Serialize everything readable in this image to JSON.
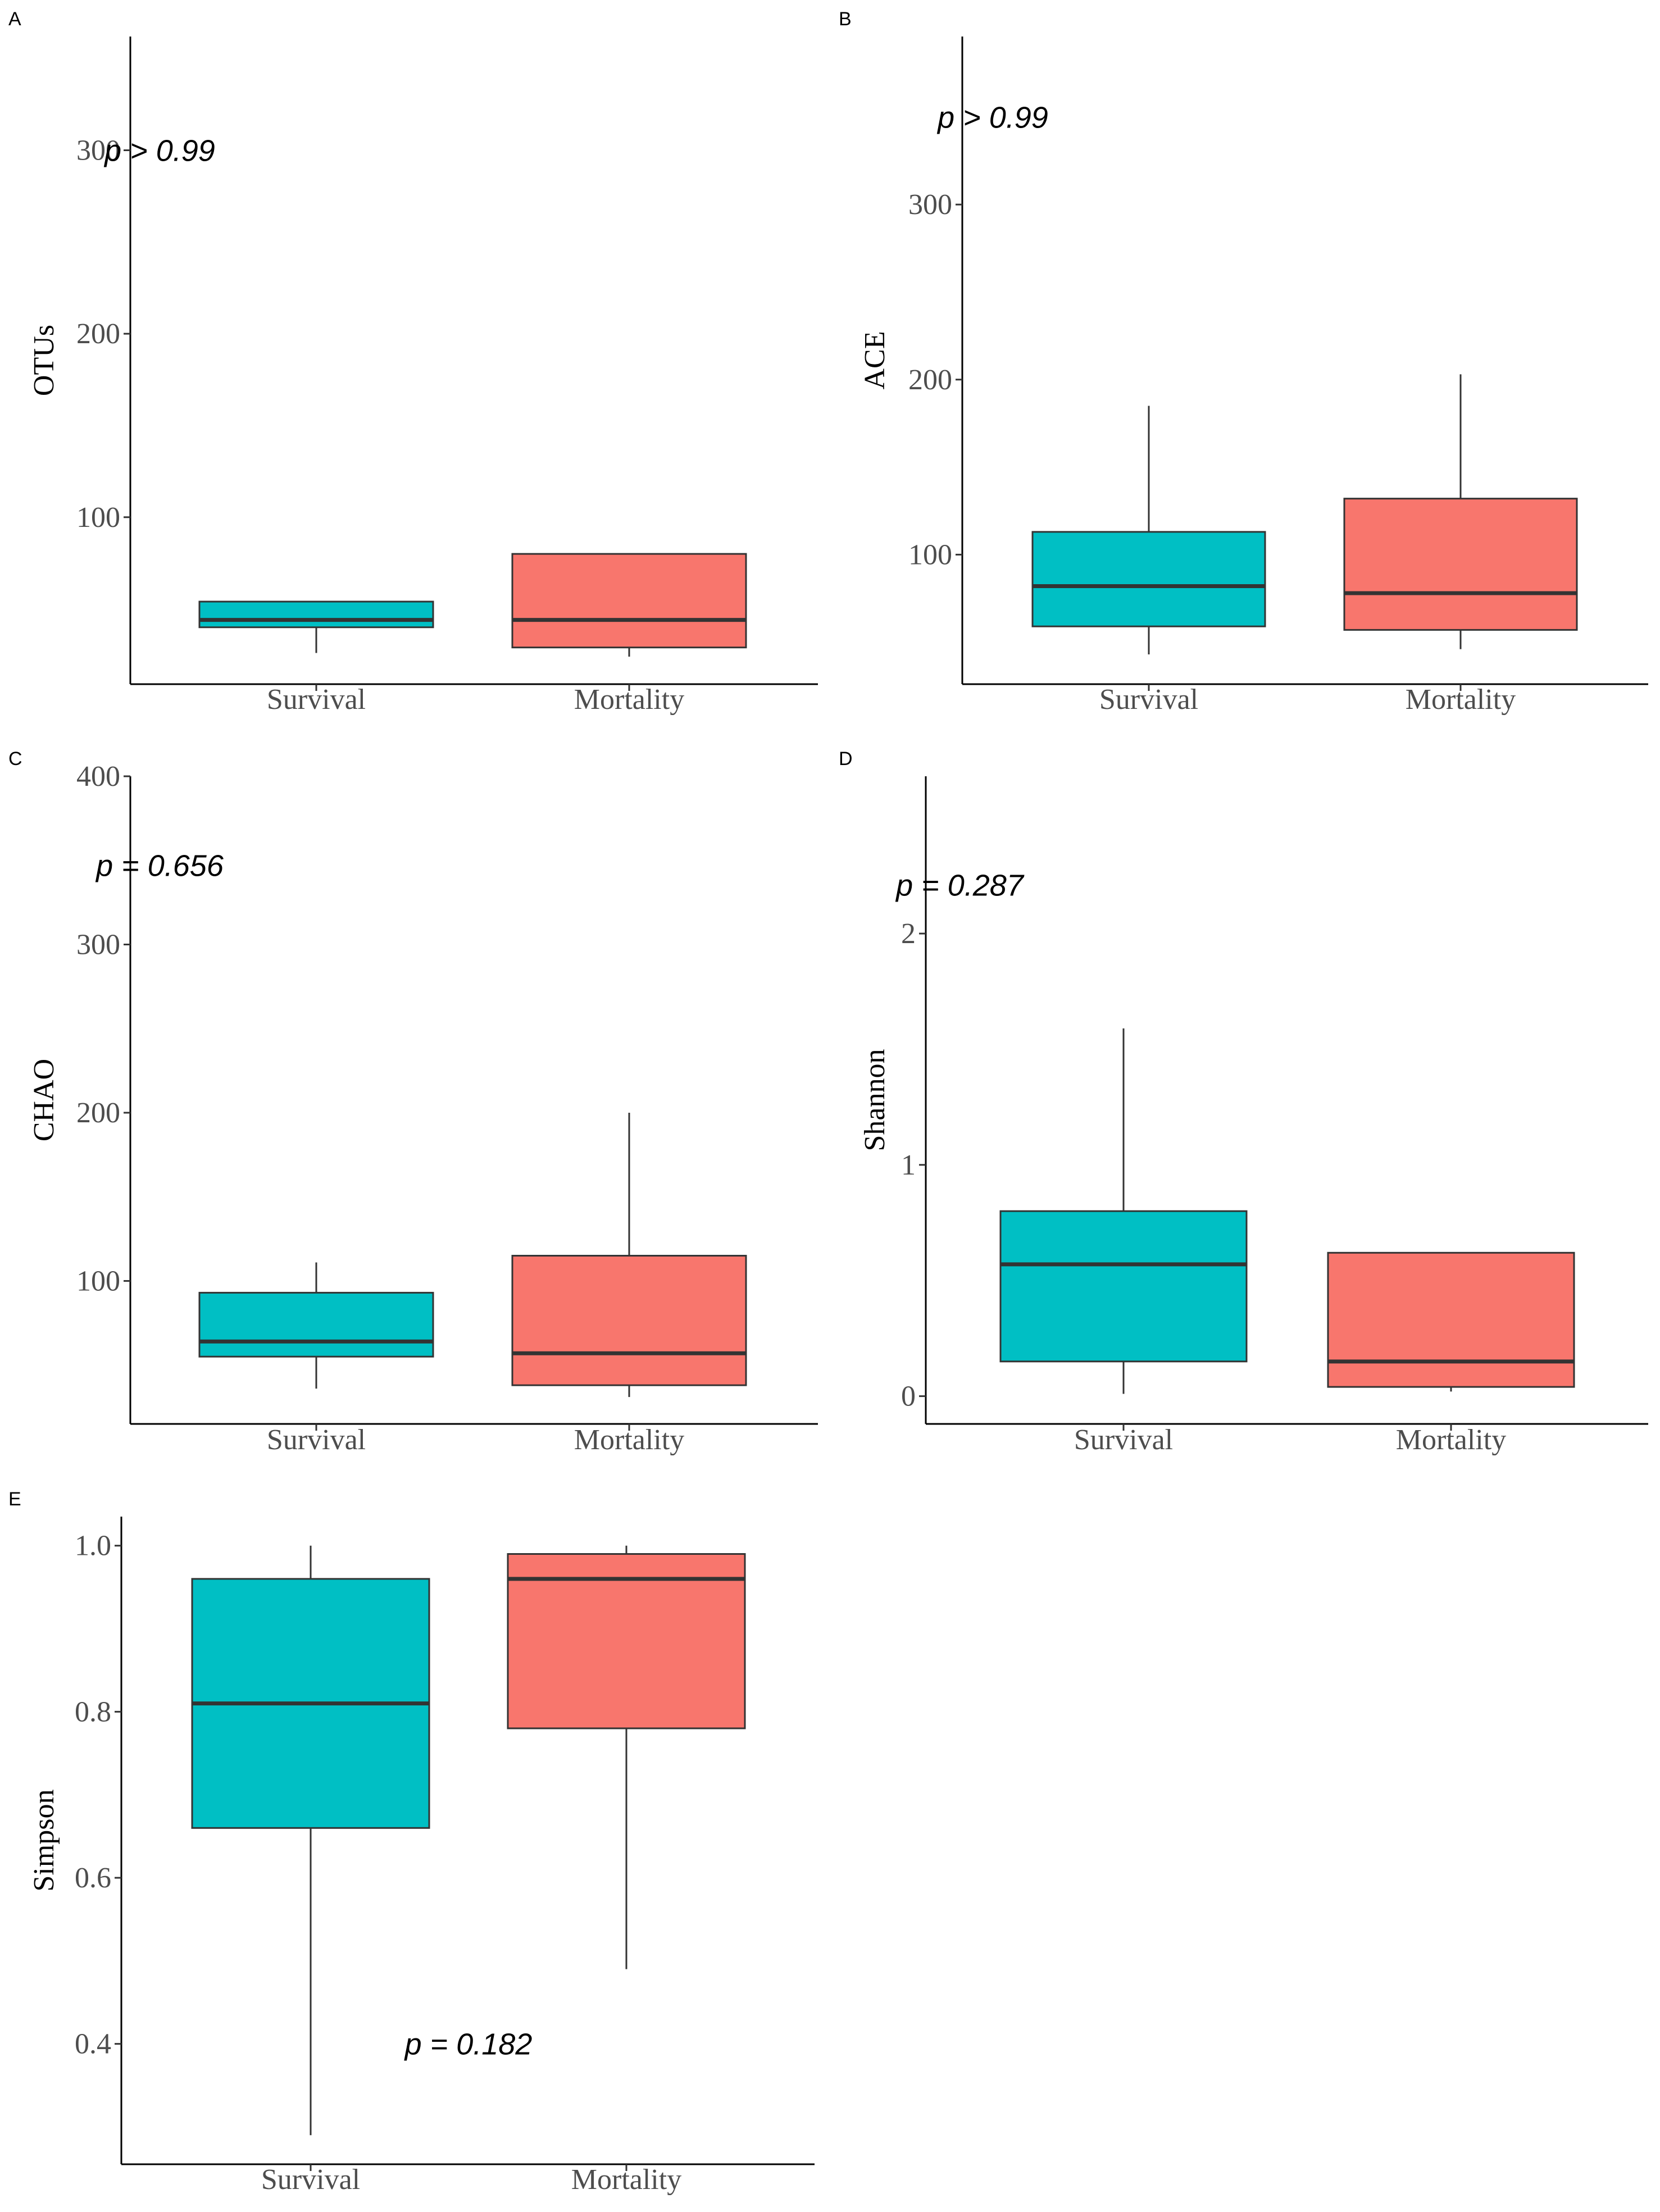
{
  "chart_data": [
    {
      "type": "box",
      "panel": "A",
      "ylabel": "OTUs",
      "categories": [
        "Survival",
        "Mortality"
      ],
      "ylim": [
        9,
        362
      ],
      "yticks": [
        100,
        200,
        300
      ],
      "p_value": "p > 0.99",
      "p_pos": [
        0.5,
        300
      ],
      "colors": [
        "#00BFC4",
        "#F8766D"
      ],
      "boxes": [
        {
          "whisker_low": 26,
          "q1": 40,
          "median": 44,
          "q3": 54,
          "whisker_high": 54
        },
        {
          "whisker_low": 24,
          "q1": 29,
          "median": 44,
          "q3": 80,
          "whisker_high": 80
        }
      ]
    },
    {
      "type": "box",
      "panel": "B",
      "ylabel": "ACE",
      "categories": [
        "Survival",
        "Mortality"
      ],
      "ylim": [
        26,
        396
      ],
      "yticks": [
        100,
        200,
        300
      ],
      "p_value": "p > 0.99",
      "p_pos": [
        0.5,
        350
      ],
      "colors": [
        "#00BFC4",
        "#F8766D"
      ],
      "boxes": [
        {
          "whisker_low": 43,
          "q1": 59,
          "median": 82,
          "q3": 113,
          "whisker_high": 185
        },
        {
          "whisker_low": 46,
          "q1": 57,
          "median": 78,
          "q3": 132,
          "whisker_high": 203
        }
      ]
    },
    {
      "type": "box",
      "panel": "C",
      "ylabel": "CHAO",
      "categories": [
        "Survival",
        "Mortality"
      ],
      "ylim": [
        15,
        400
      ],
      "yticks": [
        100,
        200,
        300,
        400
      ],
      "p_value": "p = 0.656",
      "p_pos": [
        0.5,
        347
      ],
      "colors": [
        "#00BFC4",
        "#F8766D"
      ],
      "boxes": [
        {
          "whisker_low": 36,
          "q1": 55,
          "median": 64,
          "q3": 93,
          "whisker_high": 111
        },
        {
          "whisker_low": 31,
          "q1": 38,
          "median": 57,
          "q3": 115,
          "whisker_high": 200
        }
      ]
    },
    {
      "type": "box",
      "panel": "D",
      "ylabel": "Shannon",
      "categories": [
        "Survival",
        "Mortality"
      ],
      "ylim": [
        -0.12,
        2.68
      ],
      "yticks": [
        0,
        1,
        2
      ],
      "p_value": "p = 0.287",
      "p_pos": [
        0.5,
        2.21
      ],
      "colors": [
        "#00BFC4",
        "#F8766D"
      ],
      "boxes": [
        {
          "whisker_low": 0.01,
          "q1": 0.15,
          "median": 0.57,
          "q3": 0.8,
          "whisker_high": 1.59
        },
        {
          "whisker_low": 0.02,
          "q1": 0.04,
          "median": 0.15,
          "q3": 0.62,
          "whisker_high": 0.62
        }
      ]
    },
    {
      "type": "box",
      "panel": "E",
      "ylabel": "Simpson",
      "categories": [
        "Survival",
        "Mortality"
      ],
      "ylim": [
        0.255,
        1.035
      ],
      "yticks": [
        0.4,
        0.6,
        0.8,
        1.0
      ],
      "p_value": "p = 0.182",
      "p_pos": [
        1.5,
        0.4
      ],
      "colors": [
        "#00BFC4",
        "#F8766D"
      ],
      "boxes": [
        {
          "whisker_low": 0.29,
          "q1": 0.66,
          "median": 0.81,
          "q3": 0.96,
          "whisker_high": 1.0
        },
        {
          "whisker_low": 0.49,
          "q1": 0.78,
          "median": 0.96,
          "q3": 0.99,
          "whisker_high": 1.0
        }
      ]
    }
  ]
}
